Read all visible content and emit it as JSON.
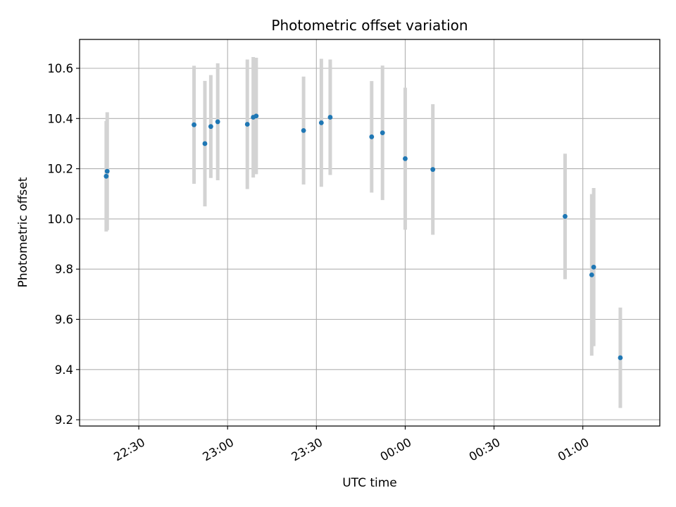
{
  "chart_data": {
    "type": "scatter",
    "title": "Photometric offset variation",
    "xlabel": "UTC time",
    "ylabel": "Photometric offset",
    "x_axis_kind": "time",
    "xlim": [
      "22:10",
      "01:26"
    ],
    "ylim": [
      9.175,
      10.715
    ],
    "x_ticks": [
      "22:30",
      "23:00",
      "23:30",
      "00:00",
      "00:30",
      "01:00"
    ],
    "y_ticks": [
      9.2,
      9.4,
      9.6,
      9.8,
      10.0,
      10.2,
      10.4,
      10.6
    ],
    "grid": true,
    "colors": {
      "point": "#1f77b4",
      "errorbar": "#d3d3d3",
      "grid": "#b0b0b0"
    },
    "series": [
      {
        "points": [
          {
            "x": "22:19:00",
            "y": 10.17,
            "yerr": 0.22
          },
          {
            "x": "22:19:20",
            "y": 10.19,
            "yerr": 0.235
          },
          {
            "x": "22:48:40",
            "y": 10.375,
            "yerr": 0.235
          },
          {
            "x": "22:52:20",
            "y": 10.3,
            "yerr": 0.25
          },
          {
            "x": "22:54:20",
            "y": 10.368,
            "yerr": 0.205
          },
          {
            "x": "22:56:40",
            "y": 10.387,
            "yerr": 0.233
          },
          {
            "x": "23:06:40",
            "y": 10.377,
            "yerr": 0.258
          },
          {
            "x": "23:08:40",
            "y": 10.405,
            "yerr": 0.24
          },
          {
            "x": "23:09:40",
            "y": 10.41,
            "yerr": 0.232
          },
          {
            "x": "23:25:40",
            "y": 10.352,
            "yerr": 0.215
          },
          {
            "x": "23:31:40",
            "y": 10.383,
            "yerr": 0.255
          },
          {
            "x": "23:34:40",
            "y": 10.405,
            "yerr": 0.23
          },
          {
            "x": "23:48:40",
            "y": 10.327,
            "yerr": 0.222
          },
          {
            "x": "23:52:20",
            "y": 10.343,
            "yerr": 0.268
          },
          {
            "x": "00:00:00",
            "y": 10.24,
            "yerr": 0.283
          },
          {
            "x": "00:09:20",
            "y": 10.197,
            "yerr": 0.26
          },
          {
            "x": "00:54:00",
            "y": 10.01,
            "yerr": 0.25
          },
          {
            "x": "01:03:00",
            "y": 9.777,
            "yerr": 0.322
          },
          {
            "x": "01:03:40",
            "y": 9.808,
            "yerr": 0.315
          },
          {
            "x": "01:12:40",
            "y": 9.447,
            "yerr": 0.2
          }
        ]
      }
    ]
  }
}
